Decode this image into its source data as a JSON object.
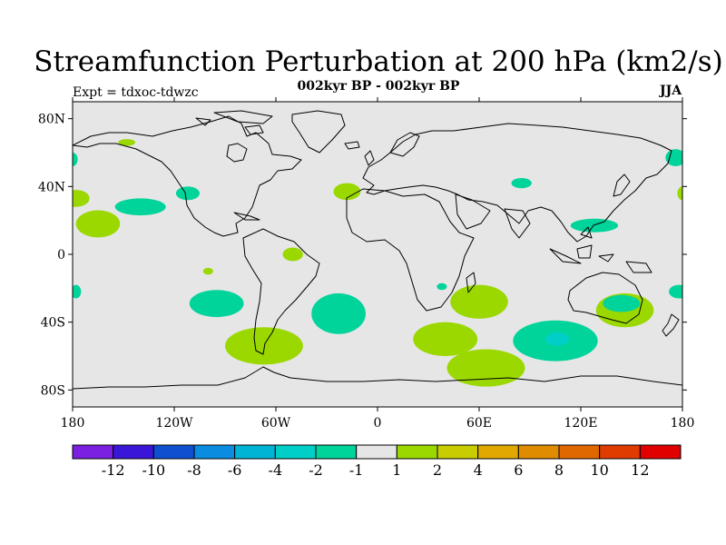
{
  "title": "Streamfunction Perturbation at 200 hPa (km2/s)",
  "subtitle": "002kyr BP - 002kyr BP",
  "left_label": "Expt = tdxoc-tdwzc",
  "right_label": "JJA",
  "map": {
    "projection": "cylindrical equidistant",
    "lon_range": [
      -180,
      180
    ],
    "lat_range": [
      -90,
      90
    ],
    "land_fill": "#e6e6e6",
    "coastline_color": "#000000"
  },
  "x_ticks": [
    "180",
    "120W",
    "60W",
    "0",
    "60E",
    "120E",
    "180"
  ],
  "y_ticks": [
    "80N",
    "40N",
    "0",
    "40S",
    "80S"
  ],
  "colorbar": {
    "colors": [
      "#7b1fe0",
      "#3a16d8",
      "#1050d0",
      "#0a8ce0",
      "#00b4d6",
      "#00cfc8",
      "#00d49a",
      "#e6e6e6",
      "#9ad800",
      "#c8cc00",
      "#e0a800",
      "#e08c00",
      "#e06800",
      "#e03c00",
      "#e00000"
    ],
    "labels": [
      "-12",
      "-10",
      "-8",
      "-6",
      "-4",
      "-2",
      "-1",
      "1",
      "2",
      "4",
      "6",
      "8",
      "10",
      "12"
    ]
  },
  "anomalies": [
    {
      "lon": 64,
      "lat": -67,
      "rx": 23,
      "ry": 11,
      "sign": "positive"
    },
    {
      "lon": -95,
      "lat": -29,
      "rx": 16,
      "ry": 8,
      "sign": "negative"
    },
    {
      "lon": -23,
      "lat": -35,
      "rx": 16,
      "ry": 12,
      "sign": "negative"
    },
    {
      "lon": 40,
      "lat": -50,
      "rx": 19,
      "ry": 10,
      "sign": "positive"
    },
    {
      "lon": 60,
      "lat": -28,
      "rx": 17,
      "ry": 10,
      "sign": "positive"
    },
    {
      "lon": 105,
      "lat": -51,
      "rx": 25,
      "ry": 12,
      "sign": "negative"
    },
    {
      "lon": 106,
      "lat": -50,
      "rx": 7,
      "ry": 4,
      "sign": "negative_strong"
    },
    {
      "lon": 146,
      "lat": -33,
      "rx": 17,
      "ry": 10,
      "sign": "positive"
    },
    {
      "lon": 144,
      "lat": -29,
      "rx": 11,
      "ry": 5,
      "sign": "negative"
    },
    {
      "lon": -165,
      "lat": 18,
      "rx": 13,
      "ry": 8,
      "sign": "positive"
    },
    {
      "lon": -178,
      "lat": 33,
      "rx": 8,
      "ry": 5,
      "sign": "positive"
    },
    {
      "lon": -140,
      "lat": 28,
      "rx": 15,
      "ry": 5,
      "sign": "negative"
    },
    {
      "lon": -112,
      "lat": 36,
      "rx": 7,
      "ry": 4,
      "sign": "negative"
    },
    {
      "lon": -148,
      "lat": 66,
      "rx": 5,
      "ry": 2,
      "sign": "positive"
    },
    {
      "lon": -50,
      "lat": 0,
      "rx": 6,
      "ry": 4,
      "sign": "positive"
    },
    {
      "lon": -100,
      "lat": -10,
      "rx": 3,
      "ry": 2,
      "sign": "positive"
    },
    {
      "lon": -18,
      "lat": 37,
      "rx": 8,
      "ry": 5,
      "sign": "positive"
    },
    {
      "lon": 85,
      "lat": 42,
      "rx": 6,
      "ry": 3,
      "sign": "negative"
    },
    {
      "lon": 128,
      "lat": 17,
      "rx": 14,
      "ry": 4,
      "sign": "negative"
    },
    {
      "lon": 176,
      "lat": 57,
      "rx": 6,
      "ry": 5,
      "sign": "negative"
    },
    {
      "lon": 180,
      "lat": 36,
      "rx": 3,
      "ry": 4,
      "sign": "positive"
    },
    {
      "lon": 178,
      "lat": -22,
      "rx": 6,
      "ry": 4,
      "sign": "negative"
    },
    {
      "lon": -178,
      "lat": -22,
      "rx": 3,
      "ry": 4,
      "sign": "negative"
    },
    {
      "lon": -180,
      "lat": 56,
      "rx": 3,
      "ry": 4,
      "sign": "negative"
    },
    {
      "lon": -67,
      "lat": -54,
      "rx": 23,
      "ry": 11,
      "sign": "positive"
    },
    {
      "lon": 38,
      "lat": -19,
      "rx": 3,
      "ry": 2,
      "sign": "negative"
    }
  ]
}
